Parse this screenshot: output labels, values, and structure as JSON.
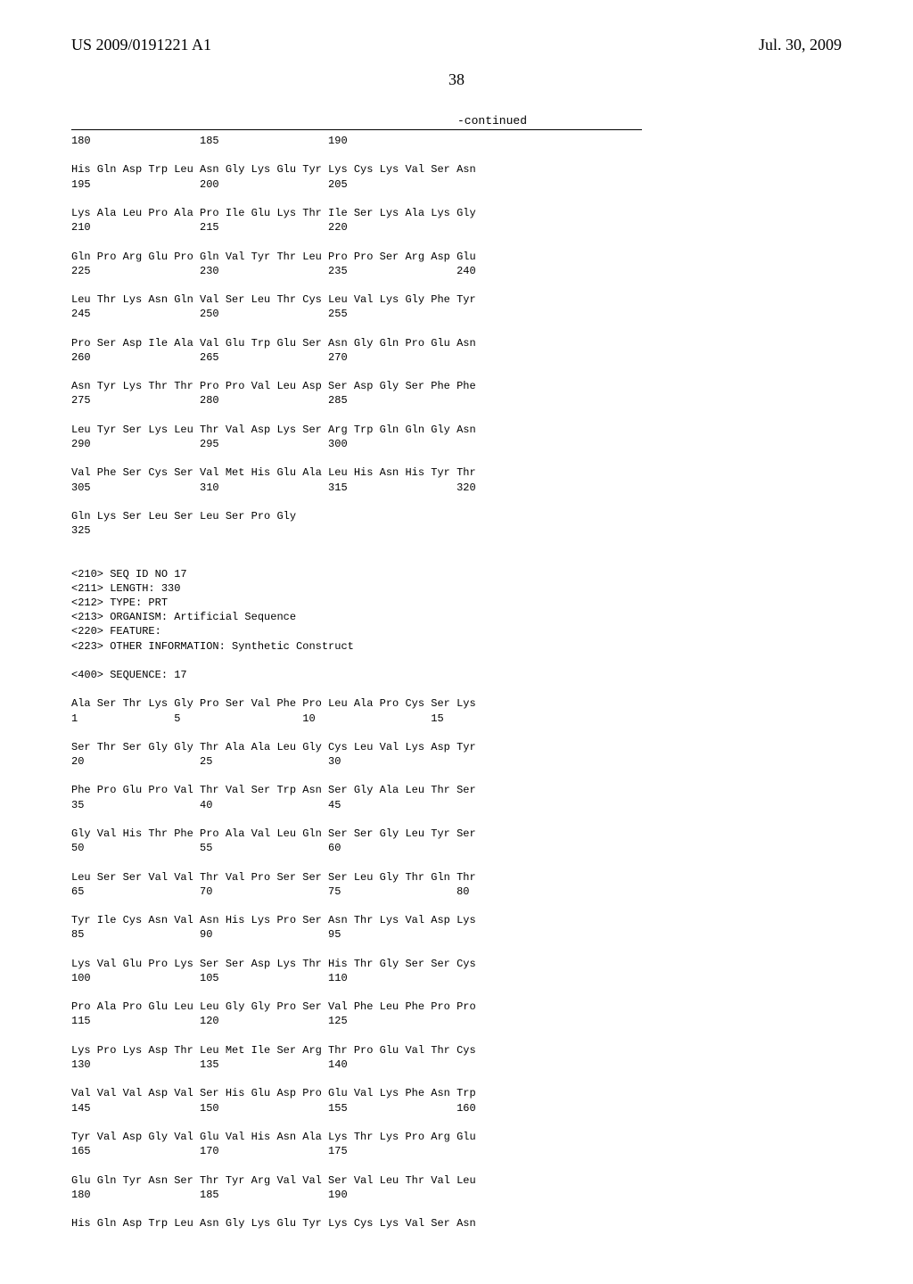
{
  "header": {
    "pub_number": "US 2009/0191221 A1",
    "pub_date": "Jul. 30, 2009"
  },
  "page_number": "38",
  "continued_label": "-continued",
  "seq_text": "180                 185                 190\n\nHis Gln Asp Trp Leu Asn Gly Lys Glu Tyr Lys Cys Lys Val Ser Asn\n195                 200                 205\n\nLys Ala Leu Pro Ala Pro Ile Glu Lys Thr Ile Ser Lys Ala Lys Gly\n210                 215                 220\n\nGln Pro Arg Glu Pro Gln Val Tyr Thr Leu Pro Pro Ser Arg Asp Glu\n225                 230                 235                 240\n\nLeu Thr Lys Asn Gln Val Ser Leu Thr Cys Leu Val Lys Gly Phe Tyr\n245                 250                 255\n\nPro Ser Asp Ile Ala Val Glu Trp Glu Ser Asn Gly Gln Pro Glu Asn\n260                 265                 270\n\nAsn Tyr Lys Thr Thr Pro Pro Val Leu Asp Ser Asp Gly Ser Phe Phe\n275                 280                 285\n\nLeu Tyr Ser Lys Leu Thr Val Asp Lys Ser Arg Trp Gln Gln Gly Asn\n290                 295                 300\n\nVal Phe Ser Cys Ser Val Met His Glu Ala Leu His Asn His Tyr Thr\n305                 310                 315                 320\n\nGln Lys Ser Leu Ser Leu Ser Pro Gly\n325\n\n\n<210> SEQ ID NO 17\n<211> LENGTH: 330\n<212> TYPE: PRT\n<213> ORGANISM: Artificial Sequence\n<220> FEATURE:\n<223> OTHER INFORMATION: Synthetic Construct\n\n<400> SEQUENCE: 17\n\nAla Ser Thr Lys Gly Pro Ser Val Phe Pro Leu Ala Pro Cys Ser Lys\n1               5                   10                  15\n\nSer Thr Ser Gly Gly Thr Ala Ala Leu Gly Cys Leu Val Lys Asp Tyr\n20                  25                  30\n\nPhe Pro Glu Pro Val Thr Val Ser Trp Asn Ser Gly Ala Leu Thr Ser\n35                  40                  45\n\nGly Val His Thr Phe Pro Ala Val Leu Gln Ser Ser Gly Leu Tyr Ser\n50                  55                  60\n\nLeu Ser Ser Val Val Thr Val Pro Ser Ser Ser Leu Gly Thr Gln Thr\n65                  70                  75                  80\n\nTyr Ile Cys Asn Val Asn His Lys Pro Ser Asn Thr Lys Val Asp Lys\n85                  90                  95\n\nLys Val Glu Pro Lys Ser Ser Asp Lys Thr His Thr Gly Ser Ser Cys\n100                 105                 110\n\nPro Ala Pro Glu Leu Leu Gly Gly Pro Ser Val Phe Leu Phe Pro Pro\n115                 120                 125\n\nLys Pro Lys Asp Thr Leu Met Ile Ser Arg Thr Pro Glu Val Thr Cys\n130                 135                 140\n\nVal Val Val Asp Val Ser His Glu Asp Pro Glu Val Lys Phe Asn Trp\n145                 150                 155                 160\n\nTyr Val Asp Gly Val Glu Val His Asn Ala Lys Thr Lys Pro Arg Glu\n165                 170                 175\n\nGlu Gln Tyr Asn Ser Thr Tyr Arg Val Val Ser Val Leu Thr Val Leu\n180                 185                 190\n\nHis Gln Asp Trp Leu Asn Gly Lys Glu Tyr Lys Cys Lys Val Ser Asn"
}
